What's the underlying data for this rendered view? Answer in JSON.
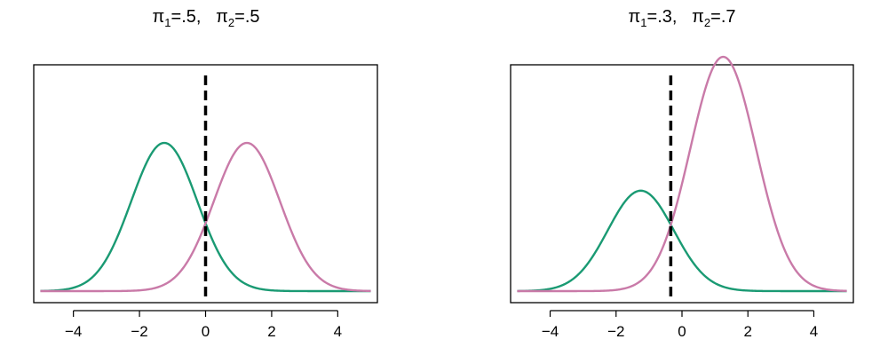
{
  "colors": {
    "class1": "#1a9a73",
    "class2": "#c97aa8",
    "boundary": "#000000",
    "frame": "#000000"
  },
  "chart_data": [
    {
      "type": "line",
      "title": {
        "pi1_symbol": "π",
        "pi1_sub": "1",
        "pi1_value": "=.5,",
        "pi2_symbol": "π",
        "pi2_sub": "2",
        "pi2_value": "=.5"
      },
      "xlim": [
        -5.2,
        5.2
      ],
      "x_ticks": [
        -4,
        -2,
        0,
        2,
        4
      ],
      "x_tick_labels": [
        "−4",
        "−2",
        "0",
        "2",
        "4"
      ],
      "series": [
        {
          "mean": -1.25,
          "sd": 1,
          "prior": 0.5
        },
        {
          "mean": 1.25,
          "sd": 1,
          "prior": 0.5
        }
      ],
      "decision_boundary_x": 0
    },
    {
      "type": "line",
      "title": {
        "pi1_symbol": "π",
        "pi1_sub": "1",
        "pi1_value": "=.3,",
        "pi2_symbol": "π",
        "pi2_sub": "2",
        "pi2_value": "=.7"
      },
      "xlim": [
        -5.2,
        5.2
      ],
      "x_ticks": [
        -4,
        -2,
        0,
        2,
        4
      ],
      "x_tick_labels": [
        "−4",
        "−2",
        "0",
        "2",
        "4"
      ],
      "series": [
        {
          "mean": -1.25,
          "sd": 1,
          "prior": 0.3
        },
        {
          "mean": 1.25,
          "sd": 1,
          "prior": 0.7
        }
      ],
      "decision_boundary_x": -0.34
    }
  ]
}
